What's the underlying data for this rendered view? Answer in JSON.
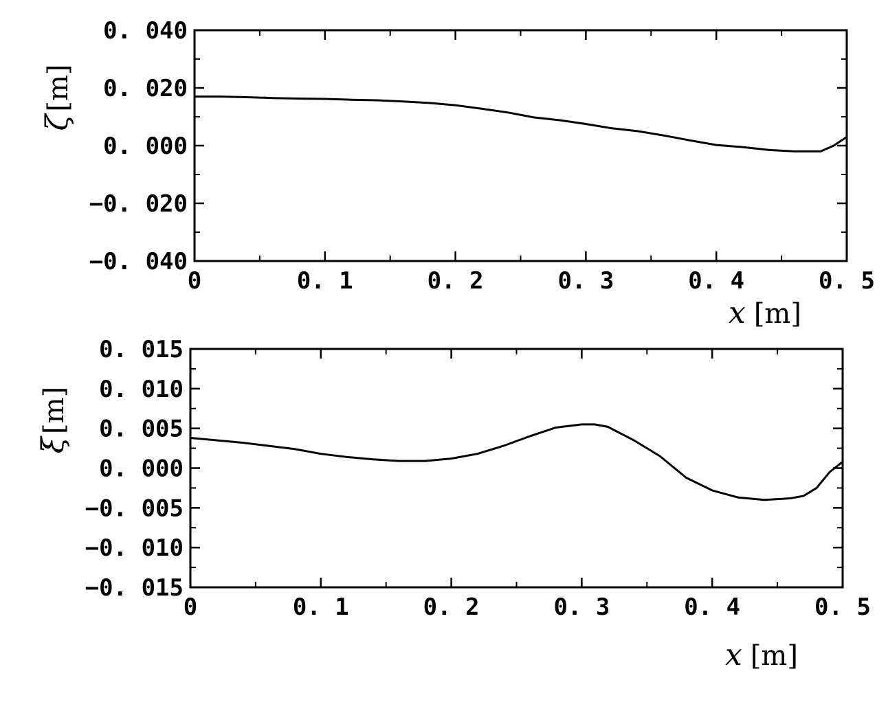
{
  "chart_data": [
    {
      "type": "line",
      "id": "top",
      "ylabel_symbol": "ζ",
      "ylabel_unit": "[m]",
      "xlabel_symbol": "x",
      "xlabel_unit": "[m]",
      "xlim": [
        0,
        0.5
      ],
      "ylim": [
        -0.04,
        0.04
      ],
      "x_ticks": [
        0,
        0.1,
        0.2,
        0.3,
        0.4,
        0.5
      ],
      "x_tick_labels": [
        "0",
        "0. 1",
        "0. 2",
        "0. 3",
        "0. 4",
        "0. 5"
      ],
      "y_ticks": [
        0.04,
        0.02,
        0.0,
        -0.02,
        -0.04
      ],
      "y_tick_labels": [
        "0. 040",
        "0. 020",
        "0. 000",
        "−0. 020",
        "−0. 040"
      ],
      "x_minor_step": 0.05,
      "y_minor_step": 0.01,
      "grid": false,
      "series": [
        {
          "x": [
            0,
            0.02,
            0.04,
            0.06,
            0.08,
            0.1,
            0.12,
            0.14,
            0.16,
            0.18,
            0.2,
            0.22,
            0.24,
            0.26,
            0.28,
            0.3,
            0.32,
            0.34,
            0.36,
            0.38,
            0.4,
            0.42,
            0.44,
            0.46,
            0.48,
            0.49,
            0.5
          ],
          "y": [
            0.017,
            0.017,
            0.0168,
            0.0165,
            0.0163,
            0.0162,
            0.0159,
            0.0157,
            0.0153,
            0.0148,
            0.014,
            0.0128,
            0.0115,
            0.0098,
            0.0088,
            0.0075,
            0.006,
            0.005,
            0.0035,
            0.0018,
            0.0002,
            -0.0005,
            -0.0015,
            -0.002,
            -0.002,
            0.0,
            0.003
          ]
        }
      ]
    },
    {
      "type": "line",
      "id": "bottom",
      "ylabel_symbol": "ξ",
      "ylabel_unit": "[m]",
      "xlabel_symbol": "x",
      "xlabel_unit": "[m]",
      "xlim": [
        0,
        0.5
      ],
      "ylim": [
        -0.015,
        0.015
      ],
      "x_ticks": [
        0,
        0.1,
        0.2,
        0.3,
        0.4,
        0.5
      ],
      "x_tick_labels": [
        "0",
        "0. 1",
        "0. 2",
        "0. 3",
        "0. 4",
        "0. 5"
      ],
      "y_ticks": [
        0.015,
        0.01,
        0.005,
        0.0,
        -0.005,
        -0.01,
        -0.015
      ],
      "y_tick_labels": [
        "0. 015",
        "0. 010",
        "0. 005",
        "0. 000",
        "−0. 005",
        "−0. 010",
        "−0. 015"
      ],
      "x_minor_step": 0.05,
      "y_minor_step": 0.0025,
      "grid": false,
      "series": [
        {
          "x": [
            0,
            0.02,
            0.04,
            0.06,
            0.08,
            0.1,
            0.12,
            0.14,
            0.16,
            0.18,
            0.2,
            0.22,
            0.24,
            0.26,
            0.28,
            0.3,
            0.31,
            0.32,
            0.34,
            0.36,
            0.38,
            0.4,
            0.42,
            0.44,
            0.46,
            0.47,
            0.48,
            0.49,
            0.5
          ],
          "y": [
            0.0038,
            0.0035,
            0.0032,
            0.0028,
            0.0024,
            0.0018,
            0.0014,
            0.0011,
            0.0009,
            0.0009,
            0.0012,
            0.0018,
            0.0028,
            0.004,
            0.0051,
            0.0055,
            0.0055,
            0.0052,
            0.0035,
            0.0015,
            -0.0012,
            -0.0028,
            -0.0037,
            -0.004,
            -0.0038,
            -0.0035,
            -0.0025,
            -0.0005,
            0.0008
          ]
        }
      ]
    }
  ]
}
